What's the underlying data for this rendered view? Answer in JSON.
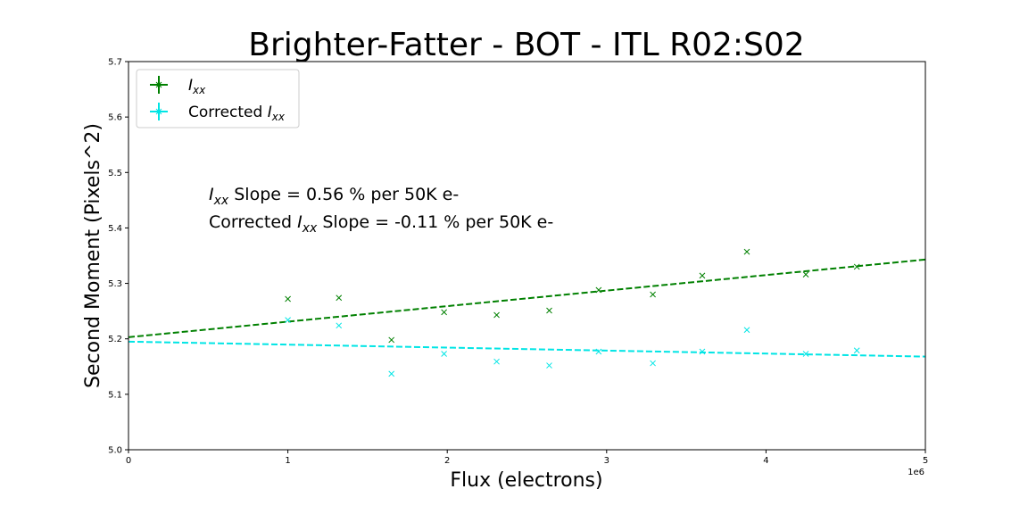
{
  "chart_data": {
    "type": "scatter",
    "title": "Brighter-Fatter - BOT - ITL R02:S02",
    "xlabel": "Flux (electrons)",
    "ylabel": "Second Moment (Pixels^2)",
    "x_scale_label": "1e6",
    "xlim": [
      0,
      5000000
    ],
    "ylim": [
      5.0,
      5.7
    ],
    "x_ticks": [
      0,
      1000000,
      2000000,
      3000000,
      4000000,
      5000000
    ],
    "x_tick_labels": [
      "0",
      "1",
      "2",
      "3",
      "4",
      "5"
    ],
    "y_ticks": [
      5.0,
      5.1,
      5.2,
      5.3,
      5.4,
      5.5,
      5.6,
      5.7
    ],
    "y_tick_labels": [
      "5.0",
      "5.1",
      "5.2",
      "5.3",
      "5.4",
      "5.5",
      "5.6",
      "5.7"
    ],
    "grid": false,
    "legend_position": "top-left",
    "annotations": [
      {
        "prefix": "",
        "subject": "I",
        "sub": "xx",
        "text": " Slope = 0.56 % per 50K e-"
      },
      {
        "prefix": "Corrected ",
        "subject": "I",
        "sub": "xx",
        "text": " Slope = -0.11 % per 50K e-"
      }
    ],
    "series": [
      {
        "name": "I_xx",
        "legend_prefix": "",
        "legend_subject": "I",
        "legend_sub": "xx",
        "color": "#008000",
        "marker": "x",
        "x": [
          1000000,
          1320000,
          1650000,
          1980000,
          2310000,
          2640000,
          2950000,
          3290000,
          3600000,
          3880000,
          4250000,
          4570000
        ],
        "y": [
          5.272,
          5.274,
          5.198,
          5.248,
          5.243,
          5.251,
          5.288,
          5.28,
          5.314,
          5.357,
          5.316,
          5.33
        ],
        "fit": {
          "x": [
            0,
            5000000
          ],
          "y": [
            5.203,
            5.343
          ]
        }
      },
      {
        "name": "Corrected I_xx",
        "legend_prefix": "Corrected ",
        "legend_subject": "I",
        "legend_sub": "xx",
        "color": "#00e5e5",
        "marker": "x",
        "x": [
          1000000,
          1320000,
          1650000,
          1980000,
          2310000,
          2640000,
          2950000,
          3290000,
          3600000,
          3880000,
          4250000,
          4570000
        ],
        "y": [
          5.234,
          5.224,
          5.137,
          5.173,
          5.159,
          5.152,
          5.177,
          5.156,
          5.177,
          5.216,
          5.173,
          5.179
        ],
        "fit": {
          "x": [
            0,
            5000000
          ],
          "y": [
            5.195,
            5.168
          ]
        }
      }
    ]
  }
}
